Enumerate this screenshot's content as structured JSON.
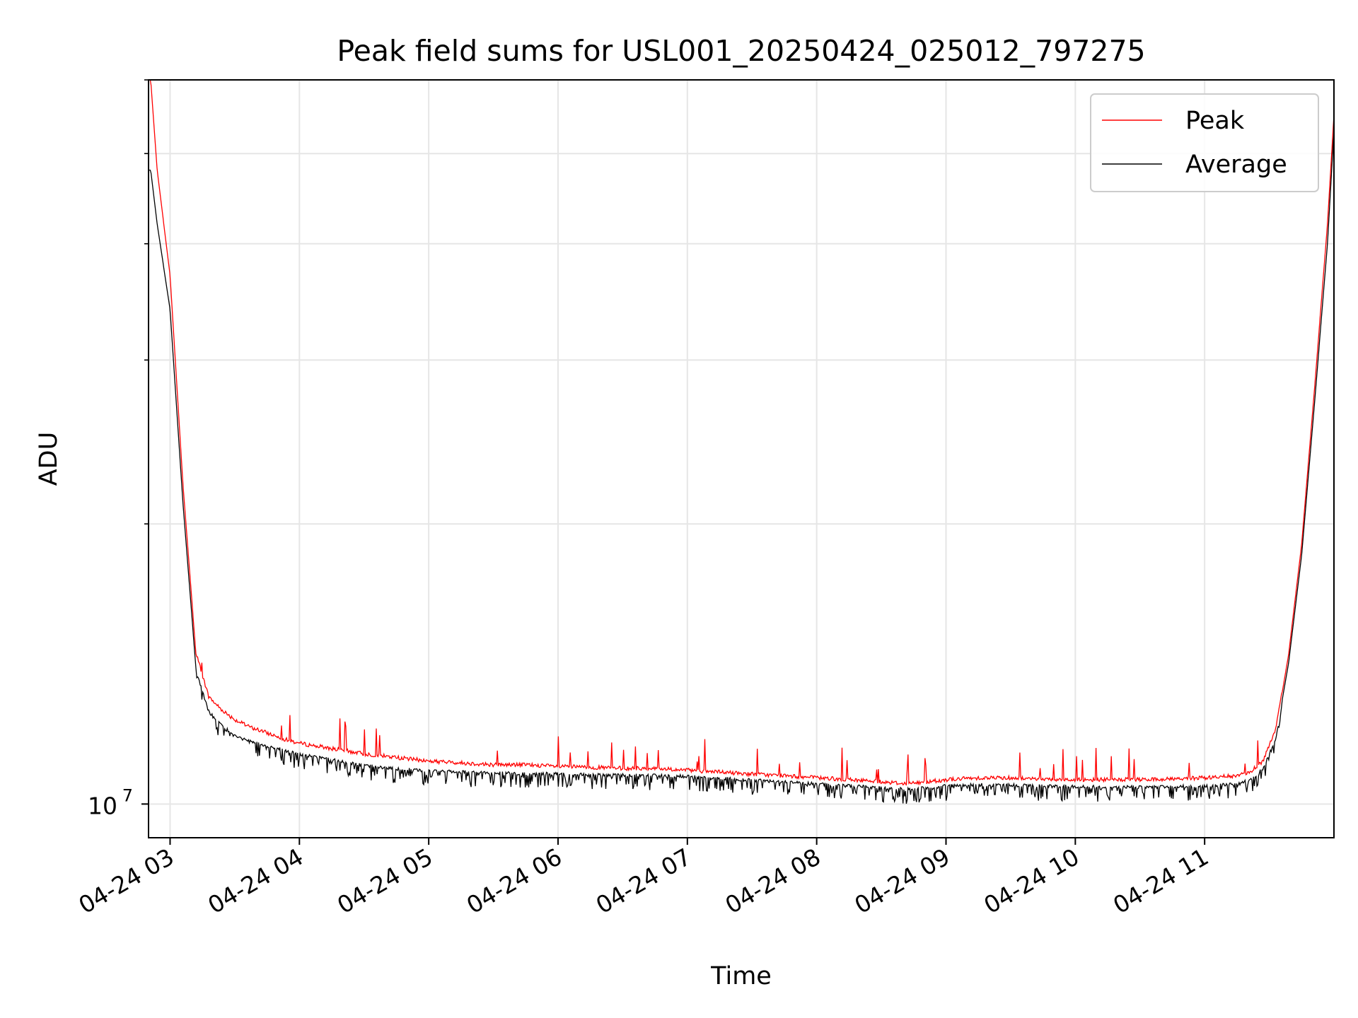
{
  "chart_data": {
    "type": "line",
    "title": "Peak field sums for USL001_20250424_025012_797275",
    "xlabel": "Time",
    "ylabel": "ADU",
    "x_range": [
      "2025-04-24 02:50",
      "2025-04-24 12:00"
    ],
    "x_ticks": [
      "04-24 03",
      "04-24 04",
      "04-24 05",
      "04-24 06",
      "04-24 07",
      "04-24 08",
      "04-24 09",
      "04-24 10",
      "04-24 11"
    ],
    "x_tick_hours": [
      3,
      4,
      5,
      6,
      7,
      8,
      9,
      10,
      11
    ],
    "y_scale": "log",
    "y_range": [
      9200000,
      60000000
    ],
    "y_tick_labels": [
      {
        "value": 10000000,
        "base": "10",
        "exp": "7"
      }
    ],
    "grid": true,
    "legend_position": "top-right",
    "colors": {
      "peak": "#ff0000",
      "average": "#000000",
      "grid": "#e6e6e6"
    },
    "series": [
      {
        "name": "Peak",
        "x_hours": [
          2.85,
          2.9,
          3.0,
          3.1,
          3.2,
          3.3,
          3.4,
          3.5,
          3.6,
          3.75,
          3.9,
          4.0,
          4.25,
          4.5,
          4.75,
          5.0,
          5.25,
          5.5,
          5.75,
          6.0,
          6.25,
          6.5,
          6.75,
          7.0,
          7.25,
          7.5,
          7.75,
          8.0,
          8.25,
          8.5,
          8.67,
          8.8,
          9.0,
          9.25,
          9.5,
          9.75,
          10.0,
          10.25,
          10.5,
          10.75,
          11.0,
          11.25,
          11.35,
          11.45,
          11.55,
          11.65,
          11.75,
          11.85,
          11.95,
          12.0
        ],
        "values": [
          60000000,
          48000000,
          37000000,
          22000000,
          14500000,
          13000000,
          12600000,
          12300000,
          12100000,
          11900000,
          11700000,
          11600000,
          11450000,
          11300000,
          11200000,
          11100000,
          11050000,
          11000000,
          11000000,
          10950000,
          10930000,
          10900000,
          10900000,
          10850000,
          10800000,
          10750000,
          10700000,
          10650000,
          10600000,
          10550000,
          10500000,
          10520000,
          10600000,
          10650000,
          10650000,
          10620000,
          10600000,
          10600000,
          10600000,
          10620000,
          10650000,
          10700000,
          10800000,
          11100000,
          12000000,
          14500000,
          19000000,
          28000000,
          42000000,
          55000000
        ]
      },
      {
        "name": "Average",
        "x_hours": [
          2.85,
          2.9,
          3.0,
          3.1,
          3.2,
          3.3,
          3.4,
          3.5,
          3.6,
          3.75,
          3.9,
          4.0,
          4.25,
          4.5,
          4.75,
          5.0,
          5.25,
          5.5,
          5.75,
          6.0,
          6.25,
          6.5,
          6.75,
          7.0,
          7.25,
          7.5,
          7.75,
          8.0,
          8.25,
          8.5,
          8.67,
          8.8,
          9.0,
          9.25,
          9.5,
          9.75,
          10.0,
          10.25,
          10.5,
          10.75,
          11.0,
          11.25,
          11.35,
          11.45,
          11.55,
          11.65,
          11.75,
          11.85,
          11.95,
          12.0
        ],
        "values": [
          48000000,
          42000000,
          34000000,
          21000000,
          14000000,
          12600000,
          12200000,
          11900000,
          11750000,
          11600000,
          11450000,
          11350000,
          11200000,
          11050000,
          10950000,
          10900000,
          10870000,
          10850000,
          10830000,
          10820000,
          10800000,
          10780000,
          10770000,
          10750000,
          10700000,
          10650000,
          10600000,
          10550000,
          10500000,
          10450000,
          10420000,
          10440000,
          10500000,
          10530000,
          10520000,
          10500000,
          10480000,
          10470000,
          10470000,
          10480000,
          10500000,
          10550000,
          10650000,
          10950000,
          11800000,
          14200000,
          18500000,
          27000000,
          40000000,
          53000000
        ]
      }
    ]
  }
}
